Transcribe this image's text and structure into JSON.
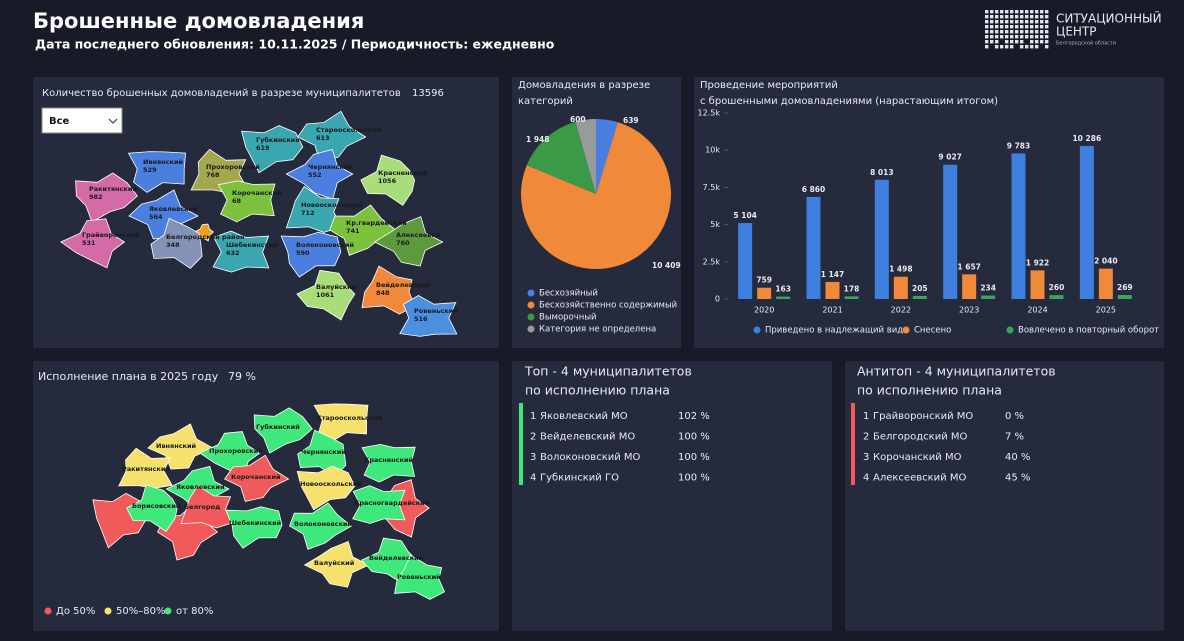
{
  "header": {
    "title": "Брошенные домовладения",
    "subtitle": "Дата последнего обновления: 10.11.2025 / Периодичность: ежедневно",
    "logo_line1": "СИТУАЦИОННЫЙ",
    "logo_line2": "ЦЕНТР",
    "logo_line3": "Белгородской области"
  },
  "map_counts": {
    "title": "Количество брошенных домовладений в разрезе муниципалитетов",
    "total": 13596,
    "filter": "Все",
    "regions": [
      {
        "name": "Ивнянский",
        "value": 529,
        "color": "#4a7fe0"
      },
      {
        "name": "Ракитянский",
        "value": 982,
        "color": "#d46aa6"
      },
      {
        "name": "Яковлевский",
        "value": 564,
        "color": "#4a7fe0"
      },
      {
        "name": "Грайворонский",
        "value": 531,
        "color": "#d46aa6"
      },
      {
        "name": "Белгородский район",
        "value": 348,
        "color": "#8393b5"
      },
      {
        "name": "Прохоровский",
        "value": 768,
        "color": "#a4a84c"
      },
      {
        "name": "Корочанский",
        "value": 68,
        "color": "#7cc23e"
      },
      {
        "name": "Губкинский",
        "value": 619,
        "color": "#3aa7b0"
      },
      {
        "name": "Старооскольский",
        "value": 613,
        "color": "#3aa7b0"
      },
      {
        "name": "Чернянский",
        "value": 552,
        "color": "#4a7fe0"
      },
      {
        "name": "Красненский",
        "value": 1056,
        "color": "#a8dd79"
      },
      {
        "name": "Новооскольский",
        "value": 712,
        "color": "#3aa7b0"
      },
      {
        "name": "Шебекинский",
        "value": 632,
        "color": "#3aa7b0"
      },
      {
        "name": "Волоконовский",
        "value": 590,
        "color": "#4a7fe0"
      },
      {
        "name": "Кр.гвардейский",
        "value": 741,
        "color": "#7cc23e"
      },
      {
        "name": "Алексеевка",
        "value": 760,
        "color": "#5d9a3e"
      },
      {
        "name": "Валуйский",
        "value": 1061,
        "color": "#a8dd79"
      },
      {
        "name": "Вейделевский",
        "value": 848,
        "color": "#f08a3a"
      },
      {
        "name": "Ровеньский",
        "value": 516,
        "color": "#4a8fe0"
      }
    ]
  },
  "chart_data": [
    {
      "type": "pie",
      "title_lines": [
        "Домовладения в разрезе",
        "категорий"
      ],
      "categories": [
        "Бесхозяйный",
        "Бесхозяйственно содержимый",
        "Выморочный",
        "Категория не определена"
      ],
      "values": [
        639,
        10409,
        1948,
        600
      ],
      "value_labels": [
        "639",
        "10 409",
        "1 948",
        "600"
      ],
      "colors": [
        "#4a7fe0",
        "#f08a3a",
        "#3a9a48",
        "#9a9a9a"
      ]
    },
    {
      "type": "bar",
      "title_lines": [
        "Проведение мероприятий",
        "с брошенными домовладениями (нарастающим итогом)"
      ],
      "categories": [
        "2020",
        "2021",
        "2022",
        "2023",
        "2024",
        "2025"
      ],
      "series": [
        {
          "name": "Приведено в надлежащий вид",
          "color": "#3f7fe0",
          "values": [
            5104,
            6860,
            8013,
            9027,
            9783,
            10286
          ],
          "value_labels": [
            "5 104",
            "6 860",
            "8 013",
            "9 027",
            "9 783",
            "10 286"
          ]
        },
        {
          "name": "Снесено",
          "color": "#f08a3a",
          "values": [
            759,
            1147,
            1498,
            1657,
            1922,
            2040
          ],
          "value_labels": [
            "759",
            "1 147",
            "1 498",
            "1 657",
            "1 922",
            "2 040"
          ]
        },
        {
          "name": "Вовлечено в повторный оборот",
          "color": "#3aa45a",
          "values": [
            163,
            178,
            205,
            234,
            260,
            269
          ]
        }
      ],
      "ylim": [
        0,
        12500
      ],
      "yticks": [
        0,
        {
          "value": 2500,
          "label": "2.5k"
        },
        {
          "value": 5000,
          "label": "5k"
        },
        {
          "value": 7500,
          "label": "7.5k"
        },
        {
          "value": 10000,
          "label": "10k"
        },
        {
          "value": 12500,
          "label": "12.5k"
        }
      ],
      "grid": false
    }
  ],
  "map_plan": {
    "title": "Исполнение плана в 2025 году",
    "total": "79 %",
    "legend": [
      {
        "label": "До 50%",
        "color": "#f05a5a"
      },
      {
        "label": "50%–80%",
        "color": "#f5e16b"
      },
      {
        "label": "от 80%",
        "color": "#3ee87a"
      }
    ],
    "regions": [
      {
        "name": "Старооскольский",
        "color": "#f5e16b"
      },
      {
        "name": "Губкинский",
        "color": "#3ee87a"
      },
      {
        "name": "Ивнянский",
        "color": "#f5e16b"
      },
      {
        "name": "Прохоровский",
        "color": "#3ee87a"
      },
      {
        "name": "Чернянский",
        "color": "#3ee87a"
      },
      {
        "name": "Ракитянский",
        "color": "#f5e16b"
      },
      {
        "name": "Красненский",
        "color": "#3ee87a"
      },
      {
        "name": "Новооскольский",
        "color": "#f5e16b"
      },
      {
        "name": "Корочанский",
        "color": "#f05a5a"
      },
      {
        "name": "Яковлевский",
        "color": "#3ee87a"
      },
      {
        "name": "Борисовский",
        "color": "#3ee87a"
      },
      {
        "name": "Белгород",
        "color": "#f05a5a"
      },
      {
        "name": "Красногвардейский",
        "color": "#3ee87a"
      },
      {
        "name": "Шебекинский",
        "color": "#3ee87a"
      },
      {
        "name": "Волоконовский",
        "color": "#3ee87a"
      },
      {
        "name": "Валуйский",
        "color": "#f5e16b"
      },
      {
        "name": "Вейделевский",
        "color": "#3ee87a"
      },
      {
        "name": "Ровеньский",
        "color": "#3ee87a"
      }
    ]
  },
  "top": {
    "title_lines": [
      "Топ - 4 муниципалитетов",
      "по исполнению плана"
    ],
    "rows": [
      [
        "1",
        "Яковлевский МО",
        "102 %"
      ],
      [
        "2",
        "Вейделевский МО",
        "100 %"
      ],
      [
        "3",
        "Волоконовский МО",
        "100 %"
      ],
      [
        "4",
        "Губкинский ГО",
        "100 %"
      ]
    ]
  },
  "antitop": {
    "title_lines": [
      "Антитоп - 4 муниципалитетов",
      "по исполнению плана"
    ],
    "rows": [
      [
        "1",
        "Грайворонский МО",
        "0 %"
      ],
      [
        "2",
        "Белгородский МО",
        "7 %"
      ],
      [
        "3",
        "Корочанский МО",
        "40 %"
      ],
      [
        "4",
        "Алексеевский МО",
        "45 %"
      ]
    ]
  }
}
